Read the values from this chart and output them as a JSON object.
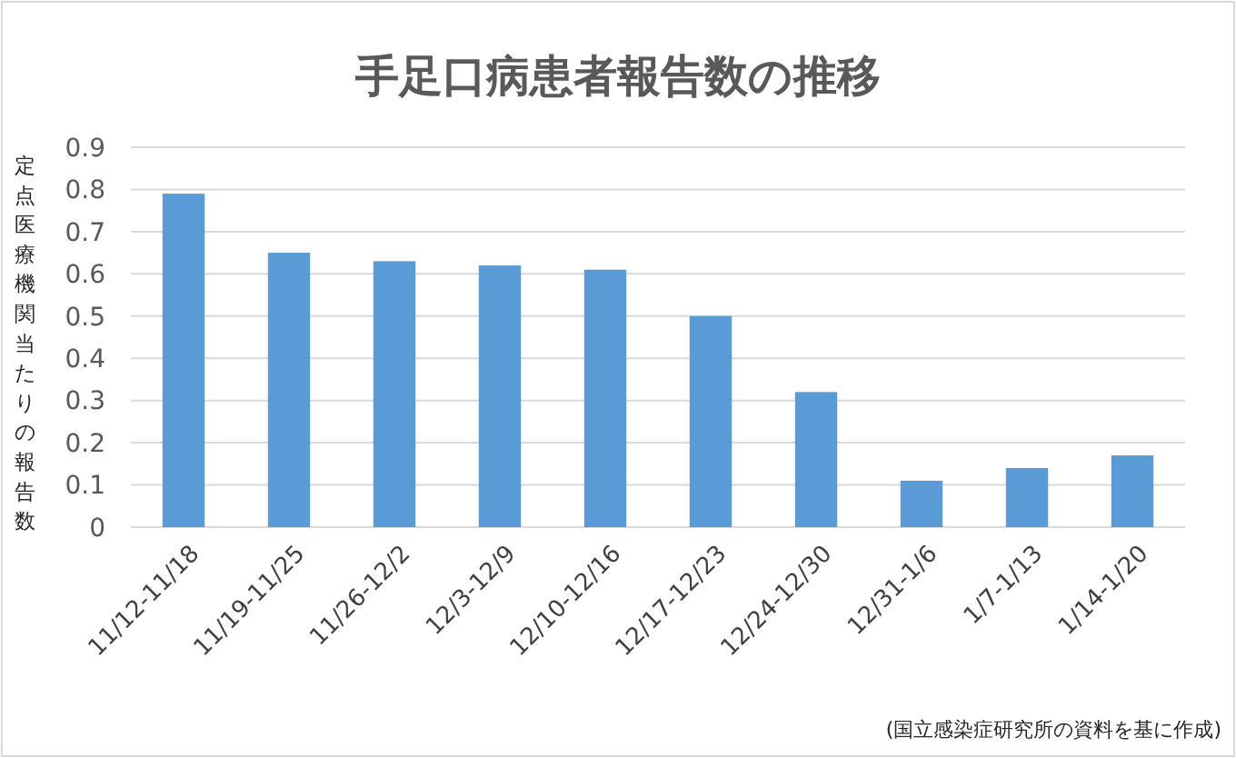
{
  "chart_data": {
    "type": "bar",
    "title": "手足口病患者報告数の推移",
    "ylabel": "定点医療機関当たりの報告数",
    "categories": [
      "11/12-11/18",
      "11/19-11/25",
      "11/26-12/2",
      "12/3-12/9",
      "12/10-12/16",
      "12/17-12/23",
      "12/24-12/30",
      "12/31-1/6",
      "1/7-1/13",
      "1/14-1/20"
    ],
    "values": [
      0.79,
      0.65,
      0.63,
      0.62,
      0.61,
      0.5,
      0.32,
      0.11,
      0.14,
      0.17
    ],
    "color": "#5b9bd5",
    "ylim": [
      0,
      0.9
    ],
    "yticks": [
      0,
      0.1,
      0.2,
      0.3,
      0.4,
      0.5,
      0.6,
      0.7,
      0.8,
      0.9
    ],
    "grid": true,
    "annotations": [
      "(国立感染症研究所の資料を基に作成)"
    ]
  }
}
